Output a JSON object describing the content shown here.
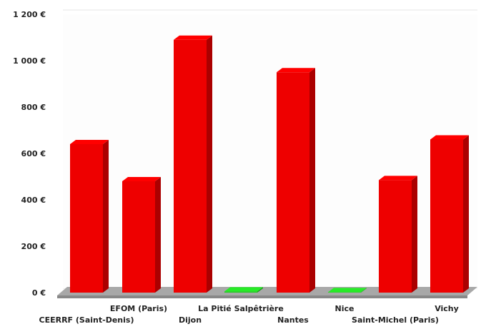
{
  "chart_data": {
    "type": "bar",
    "categories": [
      "CEERRF (Saint-Denis)",
      "EFOM (Paris)",
      "Dijon",
      "La Pitié Salpêtrière",
      "Nantes",
      "Nice",
      "Saint-Michel (Paris)",
      "Vichy"
    ],
    "values": [
      640,
      480,
      1090,
      5,
      950,
      2,
      485,
      660
    ],
    "bar_colors": [
      "#ee0000",
      "#ee0000",
      "#ee0000",
      "#22cc22",
      "#ee0000",
      "#22cc22",
      "#ee0000",
      "#ee0000"
    ],
    "y_ticks": [
      "0 €",
      "200 €",
      "400 €",
      "600 €",
      "800 €",
      "1 000 €",
      "1 200 €"
    ],
    "y_tick_values": [
      0,
      200,
      400,
      600,
      800,
      1000,
      1200
    ],
    "ylim": [
      0,
      1200
    ],
    "style": "3d",
    "grid": true,
    "legend": "none",
    "title": "",
    "xlabel": "",
    "ylabel": ""
  }
}
